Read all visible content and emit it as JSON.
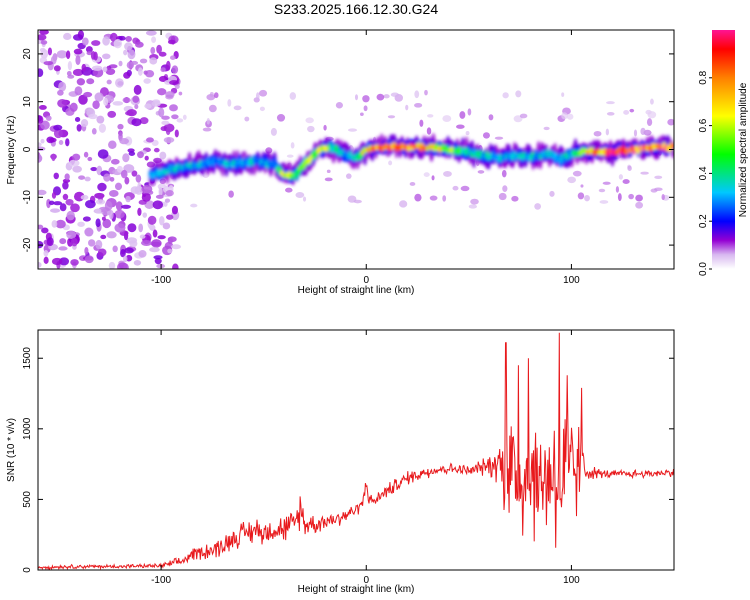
{
  "title": "S233.2025.166.12.30.G24",
  "colors": {
    "snr_line": "#e8191c",
    "axis": "#000000",
    "colorbar": [
      "#ffffff",
      "#9400d3",
      "#0000ff",
      "#00c8ff",
      "#00ff00",
      "#ffff00",
      "#ff8000",
      "#ff0000",
      "#ff1493"
    ]
  },
  "chart_data": [
    {
      "type": "heatmap",
      "title": "S233.2025.166.12.30.G24",
      "xlabel": "Height of straight line (km)",
      "ylabel": "Frequency (Hz)",
      "xlim": [
        -160,
        150
      ],
      "ylim": [
        -25,
        25
      ],
      "xticks": [
        -100,
        0,
        100
      ],
      "yticks": [
        -20,
        -10,
        0,
        10,
        20
      ],
      "colorbar": {
        "label": "Normalized spectral amplitude",
        "range": [
          0,
          1
        ],
        "ticks": [
          0.0,
          0.2,
          0.4,
          0.6,
          0.8
        ],
        "tick_labels": [
          "0.0",
          "0.2",
          "0.4",
          "0.6",
          "0.8"
        ],
        "colormap": "rainbow-white"
      },
      "ridge": {
        "x": [
          -105,
          -95,
          -85,
          -75,
          -65,
          -55,
          -45,
          -40,
          -35,
          -30,
          -25,
          -20,
          -15,
          -10,
          -5,
          0,
          10,
          20,
          30,
          40,
          50,
          60,
          70,
          80,
          90,
          95,
          100,
          105,
          120,
          140,
          150
        ],
        "y": [
          -5.5,
          -4,
          -3.5,
          -2.5,
          -3,
          -2.5,
          -3,
          -5.5,
          -5.5,
          -3,
          -1,
          0.5,
          0,
          -1,
          -2,
          0,
          0.5,
          0.5,
          0.5,
          0,
          -0.5,
          -1.5,
          -1.5,
          -1.5,
          -1,
          -2,
          -1,
          -0.5,
          -0.5,
          0.5,
          0.5
        ],
        "amplitude": [
          0.3,
          0.35,
          0.35,
          0.3,
          0.35,
          0.35,
          0.3,
          0.7,
          0.5,
          0.6,
          0.6,
          0.6,
          0.4,
          0.35,
          0.35,
          0.8,
          0.95,
          0.9,
          0.8,
          0.6,
          0.4,
          0.35,
          0.35,
          0.35,
          0.35,
          0.3,
          0.4,
          0.7,
          0.95,
          0.9,
          0.9
        ]
      },
      "noise_region_x": [
        -160,
        -100
      ]
    },
    {
      "type": "line",
      "xlabel": "Height of straight line (km)",
      "ylabel": "SNR (10 * v/v)",
      "xlim": [
        -160,
        150
      ],
      "ylim": [
        0,
        1700
      ],
      "xticks": [
        -100,
        0,
        100
      ],
      "yticks": [
        0,
        500,
        1000,
        1500
      ],
      "series": [
        {
          "x": [
            -160,
            -140,
            -120,
            -100,
            -90,
            -85,
            -80,
            -75,
            -70,
            -65,
            -60,
            -55,
            -50,
            -45,
            -40,
            -35,
            -32,
            -30,
            -25,
            -20,
            -15,
            -10,
            -5,
            -2,
            0,
            2,
            5,
            10,
            20,
            30,
            40,
            50,
            55,
            60,
            65,
            70,
            75,
            80,
            85,
            90,
            95,
            100,
            105,
            108,
            115,
            130,
            150
          ],
          "y": [
            20,
            25,
            25,
            30,
            60,
            110,
            130,
            140,
            170,
            230,
            250,
            280,
            270,
            300,
            290,
            320,
            430,
            330,
            320,
            350,
            360,
            390,
            430,
            460,
            620,
            480,
            500,
            560,
            650,
            700,
            720,
            700,
            720,
            740,
            760,
            700,
            650,
            700,
            600,
            720,
            600,
            700,
            680,
            700,
            680,
            680,
            690
          ],
          "spread": [
            15,
            15,
            15,
            15,
            40,
            40,
            60,
            70,
            80,
            90,
            90,
            100,
            90,
            100,
            110,
            100,
            150,
            90,
            70,
            70,
            60,
            60,
            50,
            50,
            80,
            60,
            50,
            50,
            50,
            50,
            40,
            40,
            60,
            80,
            160,
            600,
            450,
            500,
            450,
            500,
            600,
            500,
            300,
            60,
            30,
            30,
            30
          ]
        }
      ],
      "peak_spikes": [
        {
          "x": 68,
          "y": 1610
        },
        {
          "x": 74,
          "y": 1450
        },
        {
          "x": 79,
          "y": 1500
        },
        {
          "x": 94,
          "y": 1680
        },
        {
          "x": 98,
          "y": 1380
        },
        {
          "x": 105,
          "y": 1290
        }
      ]
    }
  ]
}
